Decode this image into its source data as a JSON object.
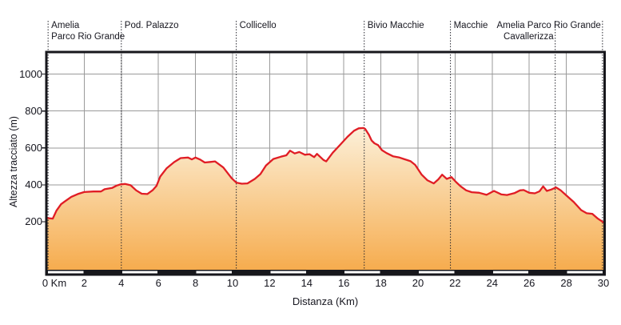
{
  "chart_data": {
    "type": "area",
    "title": "",
    "xlabel": "Distanza (Km)",
    "ylabel": "Altezza tracciato (m)",
    "xlim": [
      0,
      30
    ],
    "ylim": [
      -60,
      1115
    ],
    "grid": true,
    "yticks": [
      200,
      400,
      600,
      800,
      1000
    ],
    "xticks": [
      {
        "v": 0,
        "label": "0 Km",
        "dx": 9
      },
      {
        "v": 2,
        "label": "2"
      },
      {
        "v": 4,
        "label": "4"
      },
      {
        "v": 6,
        "label": "6"
      },
      {
        "v": 8,
        "label": "8"
      },
      {
        "v": 10,
        "label": "10"
      },
      {
        "v": 12,
        "label": "12"
      },
      {
        "v": 14,
        "label": "14"
      },
      {
        "v": 16,
        "label": "16"
      },
      {
        "v": 18,
        "label": "18"
      },
      {
        "v": 20,
        "label": "20"
      },
      {
        "v": 22,
        "label": "22"
      },
      {
        "v": 24,
        "label": "24"
      },
      {
        "v": 26,
        "label": "26"
      },
      {
        "v": 28,
        "label": "28"
      },
      {
        "v": 30,
        "label": "30"
      }
    ],
    "km_bar": {
      "interval_km": 2,
      "first_segment": "white"
    },
    "waypoints": [
      {
        "km": 0.05,
        "lines": [
          "Amelia",
          "Parco Rio Grande"
        ],
        "align": "left"
      },
      {
        "km": 4.0,
        "lines": [
          "Pod. Palazzo"
        ],
        "align": "left"
      },
      {
        "km": 10.2,
        "lines": [
          "Collicello"
        ],
        "align": "left"
      },
      {
        "km": 17.1,
        "lines": [
          "Bivio Macchie"
        ],
        "align": "left"
      },
      {
        "km": 21.75,
        "lines": [
          "Macchie"
        ],
        "align": "left"
      },
      {
        "km": 27.4,
        "lines": [
          "",
          "Cavallerizza"
        ],
        "align": "right"
      },
      {
        "km": 29.95,
        "lines": [
          "Amelia Parco Rio Grande"
        ],
        "align": "right"
      }
    ],
    "profile": [
      [
        0,
        220
      ],
      [
        0.3,
        217
      ],
      [
        0.5,
        260
      ],
      [
        0.75,
        295
      ],
      [
        0.95,
        310
      ],
      [
        1.3,
        335
      ],
      [
        1.65,
        350
      ],
      [
        2.0,
        361
      ],
      [
        2.5,
        364
      ],
      [
        2.9,
        364
      ],
      [
        3.1,
        376
      ],
      [
        3.5,
        383
      ],
      [
        3.75,
        396
      ],
      [
        3.95,
        402
      ],
      [
        4.2,
        405
      ],
      [
        4.5,
        398
      ],
      [
        4.8,
        370
      ],
      [
        5.1,
        352
      ],
      [
        5.4,
        350
      ],
      [
        5.7,
        372
      ],
      [
        5.9,
        395
      ],
      [
        6.1,
        445
      ],
      [
        6.45,
        490
      ],
      [
        6.85,
        523
      ],
      [
        7.2,
        545
      ],
      [
        7.6,
        548
      ],
      [
        7.8,
        538
      ],
      [
        8.0,
        548
      ],
      [
        8.25,
        537
      ],
      [
        8.5,
        521
      ],
      [
        8.8,
        524
      ],
      [
        9.05,
        527
      ],
      [
        9.5,
        494
      ],
      [
        9.95,
        436
      ],
      [
        10.2,
        412
      ],
      [
        10.5,
        406
      ],
      [
        10.8,
        408
      ],
      [
        11.2,
        432
      ],
      [
        11.5,
        458
      ],
      [
        11.8,
        505
      ],
      [
        12.2,
        540
      ],
      [
        12.6,
        552
      ],
      [
        12.9,
        560
      ],
      [
        13.1,
        585
      ],
      [
        13.35,
        570
      ],
      [
        13.6,
        578
      ],
      [
        13.9,
        563
      ],
      [
        14.15,
        566
      ],
      [
        14.4,
        550
      ],
      [
        14.55,
        568
      ],
      [
        14.9,
        535
      ],
      [
        15.05,
        527
      ],
      [
        15.4,
        574
      ],
      [
        15.8,
        617
      ],
      [
        16.2,
        660
      ],
      [
        16.55,
        693
      ],
      [
        16.8,
        706
      ],
      [
        17.05,
        708
      ],
      [
        17.15,
        703
      ],
      [
        17.35,
        672
      ],
      [
        17.5,
        640
      ],
      [
        17.65,
        625
      ],
      [
        17.85,
        615
      ],
      [
        18.05,
        588
      ],
      [
        18.3,
        572
      ],
      [
        18.65,
        555
      ],
      [
        19.0,
        548
      ],
      [
        19.3,
        538
      ],
      [
        19.6,
        528
      ],
      [
        19.85,
        508
      ],
      [
        20.2,
        455
      ],
      [
        20.5,
        425
      ],
      [
        20.85,
        408
      ],
      [
        21.1,
        430
      ],
      [
        21.3,
        455
      ],
      [
        21.55,
        432
      ],
      [
        21.8,
        442
      ],
      [
        22.05,
        415
      ],
      [
        22.3,
        392
      ],
      [
        22.6,
        370
      ],
      [
        22.9,
        360
      ],
      [
        23.3,
        357
      ],
      [
        23.7,
        346
      ],
      [
        24.1,
        367
      ],
      [
        24.5,
        348
      ],
      [
        24.8,
        345
      ],
      [
        25.2,
        355
      ],
      [
        25.5,
        370
      ],
      [
        25.7,
        372
      ],
      [
        26.0,
        357
      ],
      [
        26.3,
        354
      ],
      [
        26.55,
        365
      ],
      [
        26.75,
        392
      ],
      [
        26.95,
        367
      ],
      [
        27.2,
        375
      ],
      [
        27.45,
        386
      ],
      [
        27.7,
        370
      ],
      [
        28.0,
        343
      ],
      [
        28.4,
        307
      ],
      [
        28.8,
        263
      ],
      [
        29.1,
        246
      ],
      [
        29.4,
        243
      ],
      [
        29.7,
        217
      ],
      [
        30,
        197
      ]
    ],
    "colors": {
      "line": "#e01d25",
      "fill_top": "#fcf3df",
      "fill_bottom": "#f6ab4c",
      "grid": "#9a9a9a",
      "frame": "#17171c",
      "dashed": "#26262e",
      "text": "#16161f",
      "bar_black": "#17171c",
      "bar_white": "#ffffff"
    }
  }
}
